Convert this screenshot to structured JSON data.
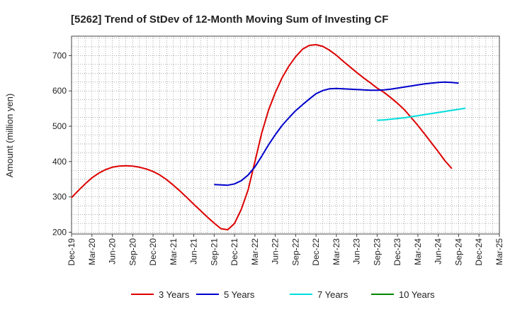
{
  "chart_data": {
    "type": "line",
    "title": "[5262]  Trend of StDev of 12-Month Moving Sum of Investing CF",
    "ylabel": "Amount (million yen)",
    "xlabel": "",
    "ylim": [
      195,
      755
    ],
    "yticks": [
      200,
      300,
      400,
      500,
      600,
      700
    ],
    "xticks": [
      "Dec-19",
      "Mar-20",
      "Jun-20",
      "Sep-20",
      "Dec-20",
      "Mar-21",
      "Jun-21",
      "Sep-21",
      "Dec-21",
      "Mar-22",
      "Jun-22",
      "Sep-22",
      "Dec-22",
      "Mar-23",
      "Jun-23",
      "Sep-23",
      "Dec-23",
      "Mar-24",
      "Jun-24",
      "Sep-24",
      "Dec-24",
      "Mar-25"
    ],
    "grid": true,
    "legend_position": "bottom",
    "series": [
      {
        "name": "3 Years",
        "color": "#dd0000",
        "start_index": 0,
        "values": [
          298,
          318,
          337,
          354,
          367,
          377,
          384,
          387,
          388,
          387,
          384,
          379,
          372,
          362,
          349,
          333,
          316,
          298,
          279,
          261,
          243,
          226,
          210,
          207,
          225,
          265,
          320,
          400,
          480,
          545,
          595,
          637,
          670,
          697,
          718,
          729,
          731,
          726,
          715,
          701,
          684,
          668,
          652,
          637,
          623,
          608,
          596,
          581,
          565,
          547,
          525,
          502,
          478,
          453,
          428,
          402,
          380
        ]
      },
      {
        "name": "5 Years",
        "color": "#0000cc",
        "start_index": 21,
        "values": [
          335,
          334,
          333,
          337,
          346,
          362,
          385,
          415,
          447,
          476,
          502,
          524,
          544,
          561,
          577,
          592,
          601,
          606,
          607,
          606,
          605,
          604,
          603,
          602,
          602,
          603,
          605,
          608,
          611,
          614,
          617,
          620,
          622,
          624,
          625,
          624,
          622
        ]
      },
      {
        "name": "7 Years",
        "color": "#00dddd",
        "start_index": 45,
        "values": [
          517,
          518,
          520,
          522,
          524,
          527,
          530,
          533,
          536,
          539,
          542,
          545,
          548,
          551
        ]
      },
      {
        "name": "10 Years",
        "color": "#008800",
        "start_index": 0,
        "values": []
      }
    ]
  }
}
